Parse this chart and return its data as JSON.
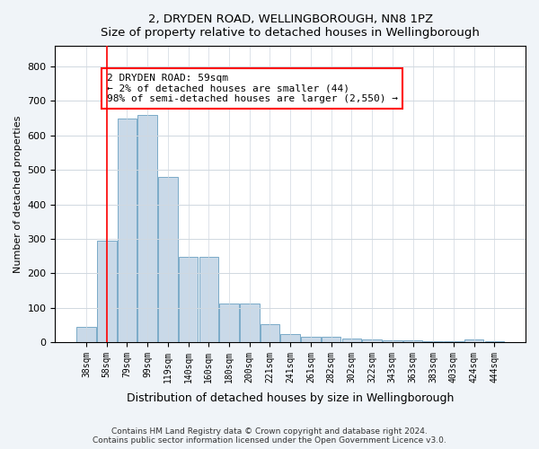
{
  "title1": "2, DRYDEN ROAD, WELLINGBOROUGH, NN8 1PZ",
  "title2": "Size of property relative to detached houses in Wellingborough",
  "xlabel": "Distribution of detached houses by size in Wellingborough",
  "ylabel": "Number of detached properties",
  "footer1": "Contains HM Land Registry data © Crown copyright and database right 2024.",
  "footer2": "Contains public sector information licensed under the Open Government Licence v3.0.",
  "annotation_title": "2 DRYDEN ROAD: 59sqm",
  "annotation_line1": "← 2% of detached houses are smaller (44)",
  "annotation_line2": "98% of semi-detached houses are larger (2,550) →",
  "bar_color": "#c9d9e8",
  "bar_edge_color": "#7aaac8",
  "red_line_x": 1,
  "categories": [
    "38sqm",
    "58sqm",
    "79sqm",
    "99sqm",
    "119sqm",
    "140sqm",
    "160sqm",
    "180sqm",
    "200sqm",
    "221sqm",
    "241sqm",
    "261sqm",
    "282sqm",
    "302sqm",
    "322sqm",
    "343sqm",
    "363sqm",
    "383sqm",
    "403sqm",
    "424sqm",
    "444sqm"
  ],
  "values": [
    44,
    295,
    650,
    660,
    480,
    248,
    248,
    113,
    113,
    52,
    24,
    15,
    15,
    10,
    8,
    5,
    5,
    3,
    3,
    8,
    3
  ],
  "ylim": [
    0,
    860
  ],
  "yticks": [
    0,
    100,
    200,
    300,
    400,
    500,
    600,
    700,
    800
  ],
  "bg_color": "#f0f4f8",
  "plot_bg_color": "#ffffff",
  "grid_color": "#d0d8e0"
}
